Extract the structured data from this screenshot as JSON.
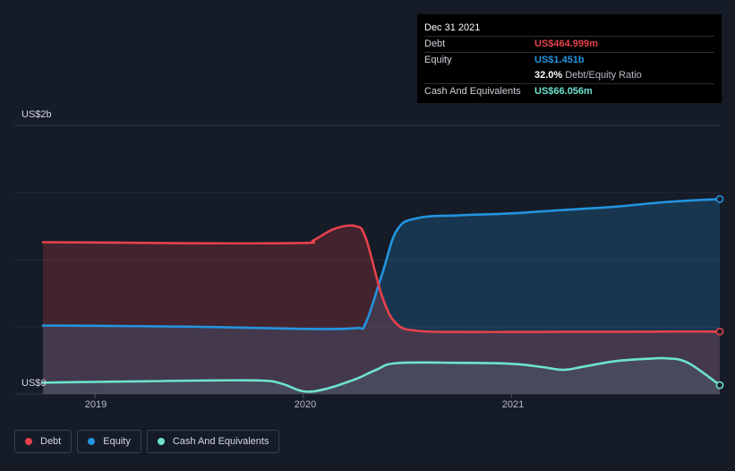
{
  "tooltip": {
    "date": "Dec 31 2021",
    "debt_label": "Debt",
    "debt_value": "US$464.999m",
    "equity_label": "Equity",
    "equity_value": "US$1.451b",
    "ratio_value": "32.0%",
    "ratio_label": "Debt/Equity Ratio",
    "cash_label": "Cash And Equivalents",
    "cash_value": "US$66.056m"
  },
  "colors": {
    "debt": "#e5424b",
    "equity": "#2394df",
    "cash": "#6ee3cf",
    "background": "#151b27"
  },
  "chart_data": {
    "type": "area",
    "y_top_label": "US$2b",
    "y_bottom_label": "US$0",
    "ylim": [
      0,
      2000
    ],
    "x_ticks": [
      {
        "label": "2019",
        "x": 2019.0
      },
      {
        "label": "2020",
        "x": 2020.0
      },
      {
        "label": "2021",
        "x": 2021.0
      }
    ],
    "xlim": [
      2018.75,
      2022.0
    ],
    "series": [
      {
        "name": "Debt",
        "color": "#e5424b",
        "points": [
          [
            2018.75,
            1130
          ],
          [
            2019.0,
            1128
          ],
          [
            2019.5,
            1122
          ],
          [
            2020.0,
            1125
          ],
          [
            2020.05,
            1145
          ],
          [
            2020.15,
            1230
          ],
          [
            2020.25,
            1250
          ],
          [
            2020.3,
            1160
          ],
          [
            2020.38,
            720
          ],
          [
            2020.45,
            520
          ],
          [
            2020.55,
            470
          ],
          [
            2020.75,
            462
          ],
          [
            2021.0,
            462
          ],
          [
            2021.25,
            463
          ],
          [
            2021.5,
            463
          ],
          [
            2021.75,
            465
          ],
          [
            2022.0,
            465
          ]
        ]
      },
      {
        "name": "Equity",
        "color": "#2394df",
        "points": [
          [
            2018.75,
            510
          ],
          [
            2019.0,
            508
          ],
          [
            2019.5,
            500
          ],
          [
            2020.0,
            485
          ],
          [
            2020.25,
            490
          ],
          [
            2020.3,
            530
          ],
          [
            2020.38,
            900
          ],
          [
            2020.45,
            1220
          ],
          [
            2020.55,
            1310
          ],
          [
            2020.75,
            1330
          ],
          [
            2021.0,
            1345
          ],
          [
            2021.25,
            1370
          ],
          [
            2021.5,
            1395
          ],
          [
            2021.75,
            1430
          ],
          [
            2022.0,
            1451
          ]
        ]
      },
      {
        "name": "Cash And Equivalents",
        "color": "#6ee3cf",
        "points": [
          [
            2018.75,
            85
          ],
          [
            2019.0,
            90
          ],
          [
            2019.25,
            95
          ],
          [
            2019.5,
            100
          ],
          [
            2019.8,
            100
          ],
          [
            2019.9,
            75
          ],
          [
            2020.0,
            20
          ],
          [
            2020.1,
            35
          ],
          [
            2020.25,
            110
          ],
          [
            2020.35,
            180
          ],
          [
            2020.45,
            230
          ],
          [
            2020.75,
            232
          ],
          [
            2021.0,
            225
          ],
          [
            2021.15,
            200
          ],
          [
            2021.25,
            180
          ],
          [
            2021.35,
            205
          ],
          [
            2021.5,
            245
          ],
          [
            2021.65,
            262
          ],
          [
            2021.75,
            265
          ],
          [
            2021.85,
            230
          ],
          [
            2022.0,
            66
          ]
        ]
      }
    ],
    "legend": [
      "Debt",
      "Equity",
      "Cash And Equivalents"
    ],
    "legend_position": "bottom-left",
    "grid": true
  }
}
